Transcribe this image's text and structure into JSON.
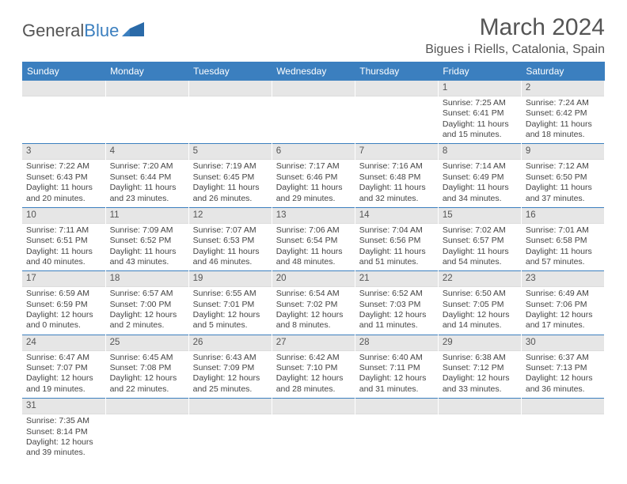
{
  "logo": {
    "text1": "General",
    "text2": "Blue"
  },
  "title": "March 2024",
  "location": "Bigues i Riells, Catalonia, Spain",
  "colors": {
    "brand": "#3b7fbf",
    "header_bg": "#3b7fbf",
    "daynum_bg": "#e6e6e6",
    "text": "#444444"
  },
  "day_headers": [
    "Sunday",
    "Monday",
    "Tuesday",
    "Wednesday",
    "Thursday",
    "Friday",
    "Saturday"
  ],
  "weeks": [
    [
      null,
      null,
      null,
      null,
      null,
      {
        "n": "1",
        "sunrise": "Sunrise: 7:25 AM",
        "sunset": "Sunset: 6:41 PM",
        "daylight": "Daylight: 11 hours and 15 minutes."
      },
      {
        "n": "2",
        "sunrise": "Sunrise: 7:24 AM",
        "sunset": "Sunset: 6:42 PM",
        "daylight": "Daylight: 11 hours and 18 minutes."
      }
    ],
    [
      {
        "n": "3",
        "sunrise": "Sunrise: 7:22 AM",
        "sunset": "Sunset: 6:43 PM",
        "daylight": "Daylight: 11 hours and 20 minutes."
      },
      {
        "n": "4",
        "sunrise": "Sunrise: 7:20 AM",
        "sunset": "Sunset: 6:44 PM",
        "daylight": "Daylight: 11 hours and 23 minutes."
      },
      {
        "n": "5",
        "sunrise": "Sunrise: 7:19 AM",
        "sunset": "Sunset: 6:45 PM",
        "daylight": "Daylight: 11 hours and 26 minutes."
      },
      {
        "n": "6",
        "sunrise": "Sunrise: 7:17 AM",
        "sunset": "Sunset: 6:46 PM",
        "daylight": "Daylight: 11 hours and 29 minutes."
      },
      {
        "n": "7",
        "sunrise": "Sunrise: 7:16 AM",
        "sunset": "Sunset: 6:48 PM",
        "daylight": "Daylight: 11 hours and 32 minutes."
      },
      {
        "n": "8",
        "sunrise": "Sunrise: 7:14 AM",
        "sunset": "Sunset: 6:49 PM",
        "daylight": "Daylight: 11 hours and 34 minutes."
      },
      {
        "n": "9",
        "sunrise": "Sunrise: 7:12 AM",
        "sunset": "Sunset: 6:50 PM",
        "daylight": "Daylight: 11 hours and 37 minutes."
      }
    ],
    [
      {
        "n": "10",
        "sunrise": "Sunrise: 7:11 AM",
        "sunset": "Sunset: 6:51 PM",
        "daylight": "Daylight: 11 hours and 40 minutes."
      },
      {
        "n": "11",
        "sunrise": "Sunrise: 7:09 AM",
        "sunset": "Sunset: 6:52 PM",
        "daylight": "Daylight: 11 hours and 43 minutes."
      },
      {
        "n": "12",
        "sunrise": "Sunrise: 7:07 AM",
        "sunset": "Sunset: 6:53 PM",
        "daylight": "Daylight: 11 hours and 46 minutes."
      },
      {
        "n": "13",
        "sunrise": "Sunrise: 7:06 AM",
        "sunset": "Sunset: 6:54 PM",
        "daylight": "Daylight: 11 hours and 48 minutes."
      },
      {
        "n": "14",
        "sunrise": "Sunrise: 7:04 AM",
        "sunset": "Sunset: 6:56 PM",
        "daylight": "Daylight: 11 hours and 51 minutes."
      },
      {
        "n": "15",
        "sunrise": "Sunrise: 7:02 AM",
        "sunset": "Sunset: 6:57 PM",
        "daylight": "Daylight: 11 hours and 54 minutes."
      },
      {
        "n": "16",
        "sunrise": "Sunrise: 7:01 AM",
        "sunset": "Sunset: 6:58 PM",
        "daylight": "Daylight: 11 hours and 57 minutes."
      }
    ],
    [
      {
        "n": "17",
        "sunrise": "Sunrise: 6:59 AM",
        "sunset": "Sunset: 6:59 PM",
        "daylight": "Daylight: 12 hours and 0 minutes."
      },
      {
        "n": "18",
        "sunrise": "Sunrise: 6:57 AM",
        "sunset": "Sunset: 7:00 PM",
        "daylight": "Daylight: 12 hours and 2 minutes."
      },
      {
        "n": "19",
        "sunrise": "Sunrise: 6:55 AM",
        "sunset": "Sunset: 7:01 PM",
        "daylight": "Daylight: 12 hours and 5 minutes."
      },
      {
        "n": "20",
        "sunrise": "Sunrise: 6:54 AM",
        "sunset": "Sunset: 7:02 PM",
        "daylight": "Daylight: 12 hours and 8 minutes."
      },
      {
        "n": "21",
        "sunrise": "Sunrise: 6:52 AM",
        "sunset": "Sunset: 7:03 PM",
        "daylight": "Daylight: 12 hours and 11 minutes."
      },
      {
        "n": "22",
        "sunrise": "Sunrise: 6:50 AM",
        "sunset": "Sunset: 7:05 PM",
        "daylight": "Daylight: 12 hours and 14 minutes."
      },
      {
        "n": "23",
        "sunrise": "Sunrise: 6:49 AM",
        "sunset": "Sunset: 7:06 PM",
        "daylight": "Daylight: 12 hours and 17 minutes."
      }
    ],
    [
      {
        "n": "24",
        "sunrise": "Sunrise: 6:47 AM",
        "sunset": "Sunset: 7:07 PM",
        "daylight": "Daylight: 12 hours and 19 minutes."
      },
      {
        "n": "25",
        "sunrise": "Sunrise: 6:45 AM",
        "sunset": "Sunset: 7:08 PM",
        "daylight": "Daylight: 12 hours and 22 minutes."
      },
      {
        "n": "26",
        "sunrise": "Sunrise: 6:43 AM",
        "sunset": "Sunset: 7:09 PM",
        "daylight": "Daylight: 12 hours and 25 minutes."
      },
      {
        "n": "27",
        "sunrise": "Sunrise: 6:42 AM",
        "sunset": "Sunset: 7:10 PM",
        "daylight": "Daylight: 12 hours and 28 minutes."
      },
      {
        "n": "28",
        "sunrise": "Sunrise: 6:40 AM",
        "sunset": "Sunset: 7:11 PM",
        "daylight": "Daylight: 12 hours and 31 minutes."
      },
      {
        "n": "29",
        "sunrise": "Sunrise: 6:38 AM",
        "sunset": "Sunset: 7:12 PM",
        "daylight": "Daylight: 12 hours and 33 minutes."
      },
      {
        "n": "30",
        "sunrise": "Sunrise: 6:37 AM",
        "sunset": "Sunset: 7:13 PM",
        "daylight": "Daylight: 12 hours and 36 minutes."
      }
    ],
    [
      {
        "n": "31",
        "sunrise": "Sunrise: 7:35 AM",
        "sunset": "Sunset: 8:14 PM",
        "daylight": "Daylight: 12 hours and 39 minutes."
      },
      null,
      null,
      null,
      null,
      null,
      null
    ]
  ]
}
